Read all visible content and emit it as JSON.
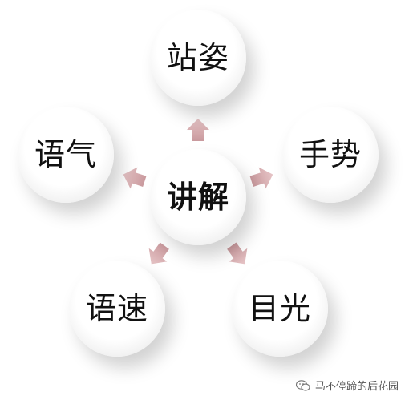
{
  "center": {
    "label": "讲解"
  },
  "nodes": [
    {
      "id": "top",
      "label": "站姿"
    },
    {
      "id": "right",
      "label": "手势"
    },
    {
      "id": "bottom_right",
      "label": "目光"
    },
    {
      "id": "bottom_left",
      "label": "语速"
    },
    {
      "id": "left",
      "label": "语气"
    }
  ],
  "arrow_color": "#d8aeb1",
  "watermark": {
    "text": "马不停蹄的后花园",
    "icon": "wechat-icon"
  }
}
